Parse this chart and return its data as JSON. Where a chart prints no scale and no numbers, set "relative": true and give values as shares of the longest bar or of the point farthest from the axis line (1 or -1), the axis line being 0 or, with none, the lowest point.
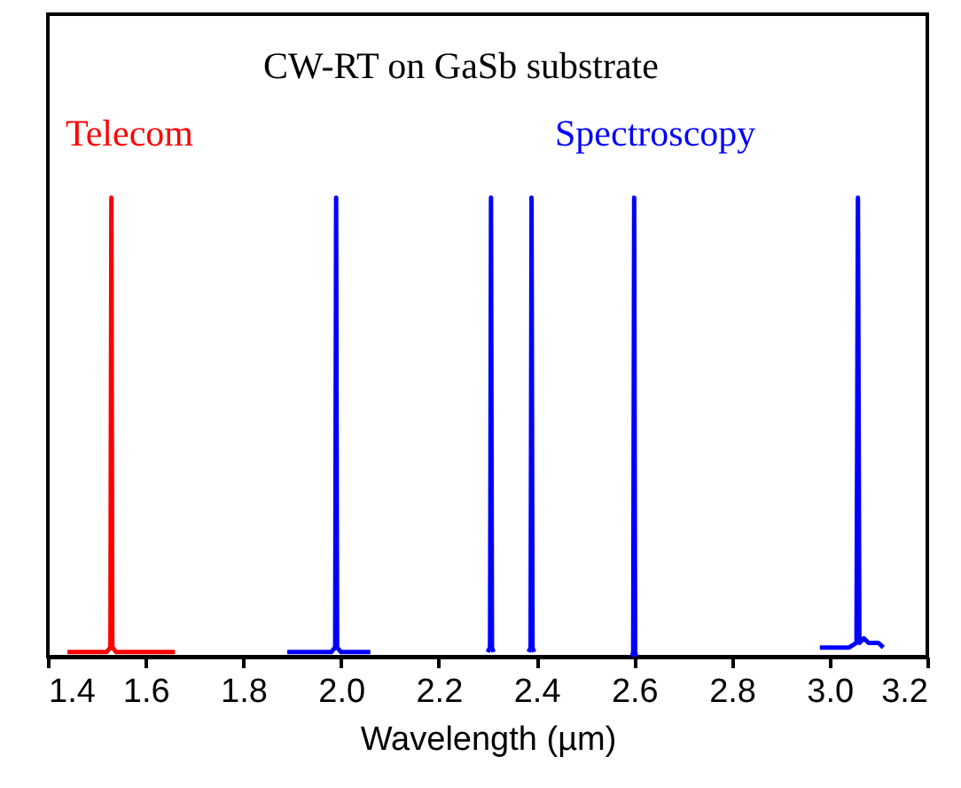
{
  "chart_data": {
    "type": "line",
    "title": "CW-RT on GaSb substrate",
    "xlabel": "Wavelength (µm)",
    "relative": true,
    "xlim": [
      1.4,
      3.2
    ],
    "xticks": [
      {
        "value": 1.4,
        "label": "1.4"
      },
      {
        "value": 1.6,
        "label": "1.6"
      },
      {
        "value": 1.8,
        "label": "1.8"
      },
      {
        "value": 2.0,
        "label": "2.0"
      },
      {
        "value": 2.2,
        "label": "2.2"
      },
      {
        "value": 2.4,
        "label": "2.4"
      },
      {
        "value": 2.6,
        "label": "2.6"
      },
      {
        "value": 2.8,
        "label": "2.8"
      },
      {
        "value": 3.0,
        "label": "3.0"
      },
      {
        "value": 3.2,
        "label": "3.2"
      }
    ],
    "annotations": [
      "Telecom",
      "Spectroscopy"
    ],
    "grid": false,
    "marker": "none",
    "line_style": "solid",
    "series": [
      {
        "color": "#ff0000",
        "x": [
          1.44,
          1.52,
          1.528,
          1.53,
          1.532,
          1.54,
          1.66
        ],
        "values": [
          0.01,
          0.01,
          0.02,
          1,
          0.02,
          0.01,
          0.01
        ]
      },
      {
        "color": "#0000ff",
        "x": [
          1.89,
          1.98,
          1.988,
          1.99,
          1.992,
          2.0,
          2.06
        ],
        "values": [
          0.01,
          0.01,
          0.02,
          1,
          0.02,
          0.01,
          0.01
        ]
      },
      {
        "color": "#0000ff",
        "x": [
          2.3,
          2.305,
          2.307,
          2.309,
          2.312
        ],
        "values": [
          0.01,
          0.02,
          1,
          0.02,
          0.01
        ]
      },
      {
        "color": "#0000ff",
        "x": [
          2.384,
          2.388,
          2.39,
          2.392,
          2.395
        ],
        "values": [
          0.01,
          0.02,
          1,
          0.02,
          0.01
        ]
      },
      {
        "color": "#0000ff",
        "x": [
          2.596,
          2.598,
          2.6,
          2.602,
          2.604
        ],
        "values": [
          0.0,
          0.01,
          1,
          0.01,
          0.0
        ]
      },
      {
        "color": "#0000ff",
        "x": [
          2.98,
          3.04,
          3.055,
          3.058,
          3.061,
          3.07,
          3.08,
          3.1,
          3.11
        ],
        "values": [
          0.02,
          0.02,
          0.03,
          1,
          0.03,
          0.04,
          0.03,
          0.03,
          0.02
        ]
      }
    ]
  }
}
